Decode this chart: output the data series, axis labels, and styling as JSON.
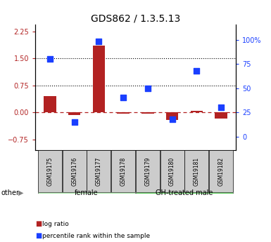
{
  "title": "GDS862 / 1.3.5.13",
  "samples": [
    "GSM19175",
    "GSM19176",
    "GSM19177",
    "GSM19178",
    "GSM19179",
    "GSM19180",
    "GSM19181",
    "GSM19182"
  ],
  "log_ratio": [
    0.45,
    -0.08,
    1.85,
    -0.04,
    -0.04,
    -0.22,
    0.04,
    -0.18
  ],
  "percentile_rank": [
    80,
    15,
    98,
    40,
    50,
    18,
    68,
    30
  ],
  "groups": [
    {
      "label": "female",
      "start": 0,
      "end": 4,
      "color": "#aaeaaa"
    },
    {
      "label": "GH-treated male",
      "start": 4,
      "end": 8,
      "color": "#55cc55"
    }
  ],
  "left_axis_ticks": [
    -0.75,
    0,
    0.75,
    1.5,
    2.25
  ],
  "right_axis_ticks": [
    0,
    25,
    50,
    75,
    100
  ],
  "ylim_left": [
    -1.05,
    2.45
  ],
  "ylim_right": [
    -14,
    116
  ],
  "hline_y": [
    0.75,
    1.5
  ],
  "dashed_hline_y": 0,
  "bar_color": "#b22222",
  "dot_color": "#1a3fff",
  "bar_width": 0.5,
  "dot_size": 35,
  "background_plot": "#ffffff",
  "background_labels": "#cccccc",
  "title_fontsize": 10
}
